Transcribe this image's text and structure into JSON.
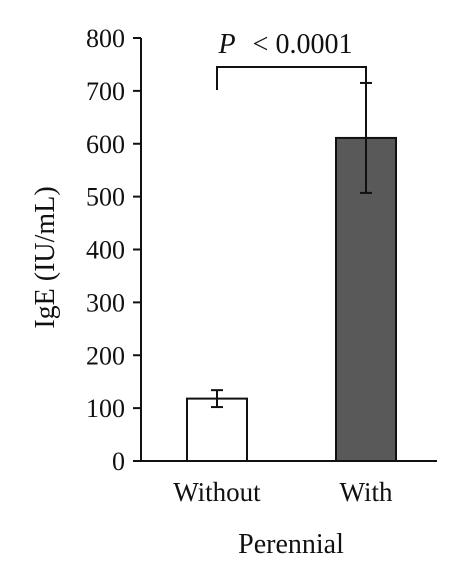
{
  "chart_data": {
    "type": "bar",
    "xlabel": "Perennial",
    "ylabel": "IgE (IU/mL)",
    "categories": [
      "Without",
      "With"
    ],
    "values": [
      118,
      611
    ],
    "error": [
      16,
      104
    ],
    "bar_colors": [
      "#ffffff",
      "#595959"
    ],
    "ylim": [
      0,
      800
    ],
    "yticks": [
      "0",
      "100",
      "200",
      "300",
      "400",
      "500",
      "600",
      "700",
      "800"
    ],
    "grid": false,
    "annotation": {
      "p_symbol": "P",
      "p_text": "< 0.0001",
      "between": [
        0,
        1
      ]
    }
  }
}
